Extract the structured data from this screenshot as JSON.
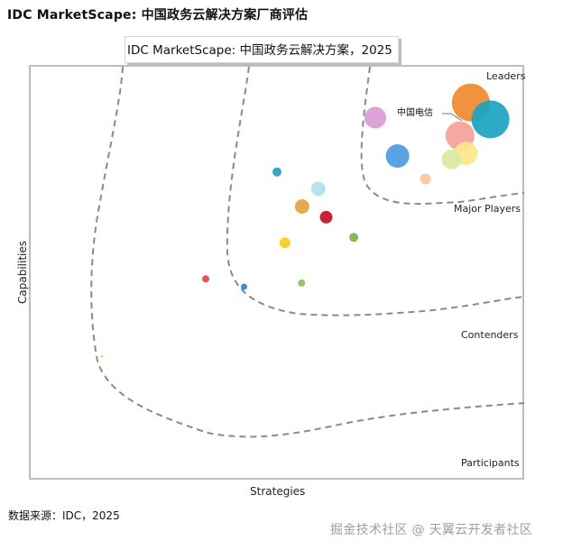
{
  "header": {
    "page_title": "IDC MarketScape: 中国政务云解决方案厂商评估"
  },
  "footer": {
    "source": "数据来源：IDC，2025",
    "watermark": "掘金技术社区 @ 天翼云开发者社区"
  },
  "chart_data": {
    "type": "scatter",
    "title": "IDC MarketScape: 中国政务云解决方案，2025",
    "xlabel": "Strategies",
    "ylabel": "Capabilities",
    "xlim": [
      0,
      100
    ],
    "ylim": [
      0,
      100
    ],
    "grid": false,
    "zones": [
      "Leaders",
      "Major Players",
      "Contenders",
      "Participants"
    ],
    "highlight_label": "中国电信",
    "points": [
      {
        "x": 89.5,
        "y": 91.3,
        "r": 21,
        "color": "#f08a2c"
      },
      {
        "x": 93.5,
        "y": 87.2,
        "r": 21,
        "color": "#1aa3c1"
      },
      {
        "x": 87.3,
        "y": 83.2,
        "r": 16,
        "color": "#f4a09a"
      },
      {
        "x": 88.5,
        "y": 78.9,
        "r": 13,
        "color": "#fde68a"
      },
      {
        "x": 85.6,
        "y": 77.5,
        "r": 11,
        "color": "#d9e9a3"
      },
      {
        "x": 70.1,
        "y": 87.6,
        "r": 12,
        "color": "#d89bd3"
      },
      {
        "x": 74.6,
        "y": 78.3,
        "r": 13,
        "color": "#4a9ce0"
      },
      {
        "x": 80.3,
        "y": 72.7,
        "r": 6,
        "color": "#f9c69b"
      },
      {
        "x": 58.5,
        "y": 70.3,
        "r": 8,
        "color": "#b0e2e8"
      },
      {
        "x": 50.1,
        "y": 74.4,
        "r": 5,
        "color": "#2aa0c0"
      },
      {
        "x": 55.2,
        "y": 66.0,
        "r": 8,
        "color": "#e1a43b"
      },
      {
        "x": 60.1,
        "y": 63.4,
        "r": 7,
        "color": "#c1121f"
      },
      {
        "x": 65.7,
        "y": 58.5,
        "r": 5,
        "color": "#7fb147"
      },
      {
        "x": 51.7,
        "y": 57.2,
        "r": 6,
        "color": "#f6cc1b"
      },
      {
        "x": 35.6,
        "y": 48.4,
        "r": 4,
        "color": "#e04a4a"
      },
      {
        "x": 43.4,
        "y": 46.5,
        "r": 3.5,
        "color": "#3b7fc4"
      },
      {
        "x": 55.1,
        "y": 47.4,
        "r": 4,
        "color": "#8fbf5a"
      },
      {
        "x": 14.5,
        "y": 29.6,
        "r": 1.5,
        "color": "#f2cf6d"
      }
    ]
  }
}
